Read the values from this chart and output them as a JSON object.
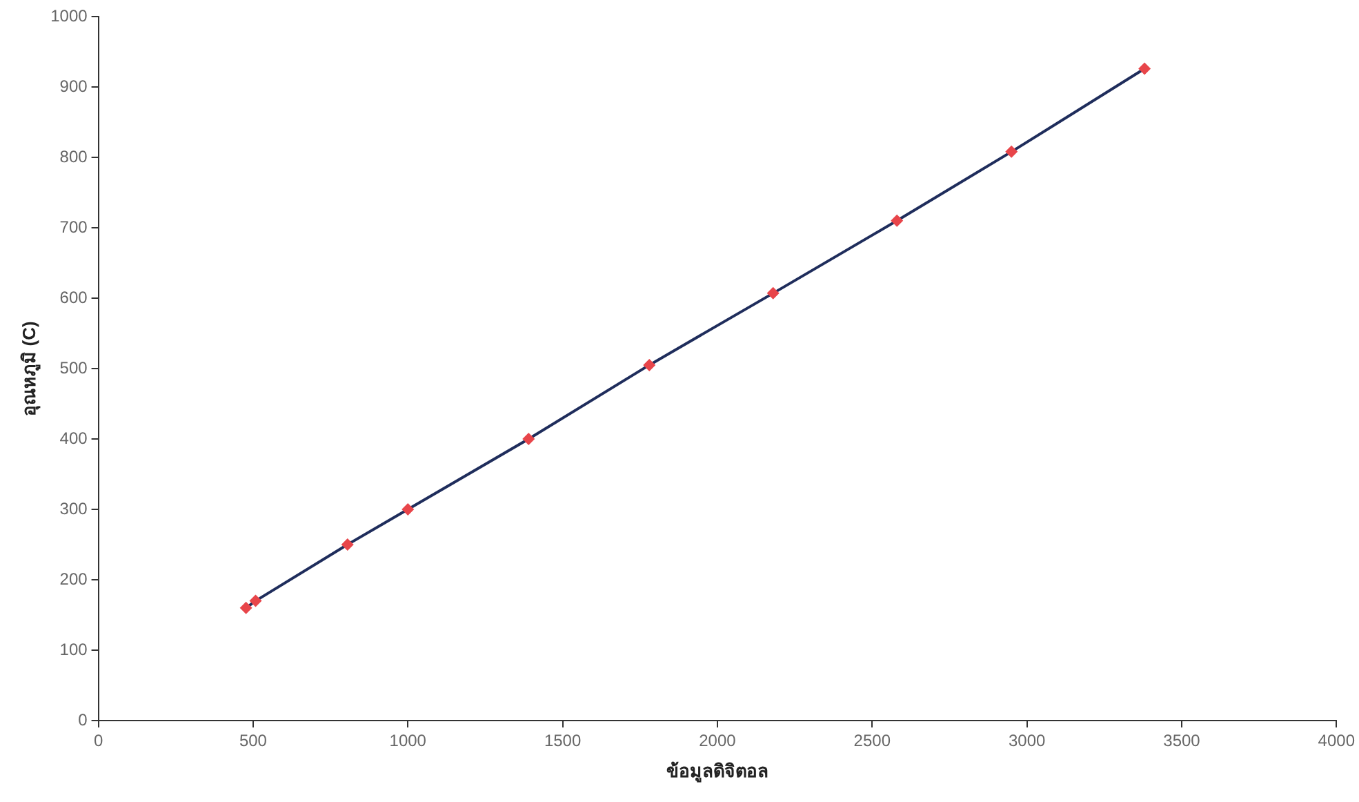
{
  "chart_data": {
    "type": "scatter",
    "xlabel": "ข้อมูลดิจิตอล",
    "ylabel": "อุณหภูมิ (C)",
    "xlim": [
      0,
      4000
    ],
    "xticks": [
      0,
      500,
      1000,
      1500,
      2000,
      2500,
      3000,
      3500,
      4000
    ],
    "ylim": [
      0,
      1000
    ],
    "yticks": [
      0,
      100,
      200,
      300,
      400,
      500,
      600,
      700,
      800,
      900,
      1000
    ],
    "grid": false,
    "legend": false,
    "series": [
      {
        "type": "line",
        "color": "#1f2d5c",
        "marker": "none",
        "line_style": "solid",
        "x": [
          477,
          508,
          805,
          1000,
          1390,
          1780,
          2180,
          2580,
          2950,
          3380
        ],
        "values": [
          160,
          170,
          250,
          300,
          400,
          505,
          607,
          710,
          808,
          926
        ]
      },
      {
        "type": "scatter",
        "color": "#e8454a",
        "marker": "diamond",
        "x": [
          477,
          508,
          805,
          1000,
          1390,
          1780,
          2180,
          2580,
          2950,
          3380
        ],
        "values": [
          160,
          170,
          250,
          300,
          400,
          505,
          607,
          710,
          808,
          926
        ]
      }
    ]
  }
}
